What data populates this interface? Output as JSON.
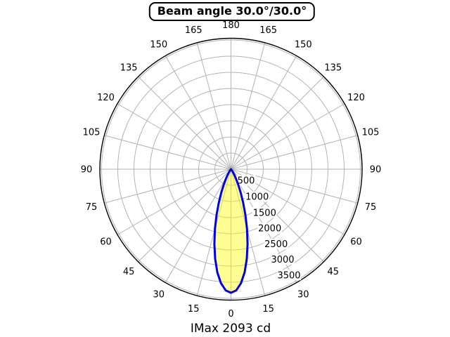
{
  "chart_data": {
    "type": "polar",
    "title": "Beam angle 30.0°/30.0°",
    "footer": "IMax 2093 cd",
    "imax_cd": 2093,
    "beam_angle_deg": [
      30.0,
      30.0
    ],
    "angle_ticks_deg": [
      0,
      15,
      30,
      45,
      60,
      75,
      90,
      105,
      120,
      135,
      150,
      165,
      180
    ],
    "radial_ticks_cd": [
      "500",
      "1000",
      "1500",
      "2000",
      "2500",
      "3000",
      "3500"
    ],
    "radial_step_cd": 500,
    "rings_count": 8,
    "grid_on": true,
    "profile": {
      "angles_deg": [
        0,
        2.5,
        5,
        7.5,
        10,
        12.5,
        15,
        17.5,
        20,
        22.5,
        25,
        27.5,
        30,
        32.5,
        35,
        37.5,
        40,
        42.5,
        45,
        47.5,
        50
      ],
      "intensity_cd": [
        2093,
        2054,
        1939,
        1763,
        1541,
        1295,
        1046,
        811,
        603,
        429,
        293,
        190,
        118,
        69,
        39,
        20,
        10,
        5,
        2,
        1,
        0
      ]
    },
    "colors": {
      "beam_fill": "#ffff00",
      "beam_fill_opacity": "0.42",
      "beam_stroke": "#0000ee",
      "grid": "#b3b3b3",
      "spine": "#000000",
      "text": "#000000"
    }
  }
}
